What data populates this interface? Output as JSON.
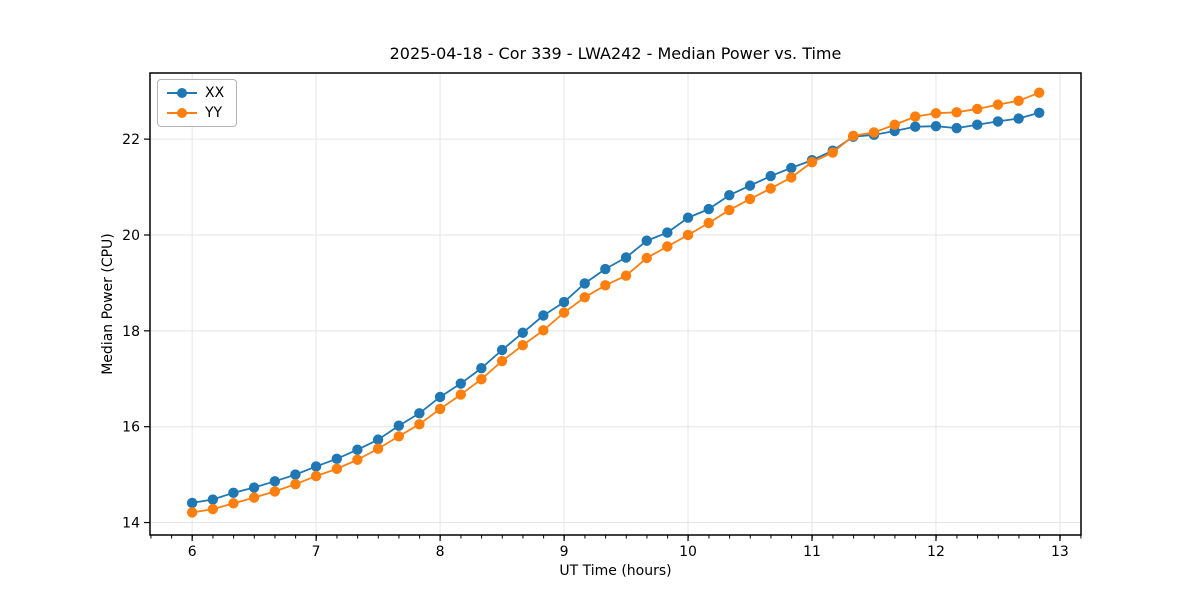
{
  "chart_data": {
    "type": "line",
    "title": "2025-04-18 - Cor 339 - LWA242 - Median Power vs. Time",
    "xlabel": "UT Time (hours)",
    "ylabel": "Median Power (CPU)",
    "xlim": [
      5.66,
      13.17
    ],
    "ylim": [
      13.74,
      23.38
    ],
    "xticks": [
      6,
      7,
      8,
      9,
      10,
      11,
      12,
      13
    ],
    "yticks": [
      14,
      16,
      18,
      20,
      22
    ],
    "x_minor_tick_step": 0.1667,
    "grid": true,
    "grid_color": "#e6e6e6",
    "spine_color": "#000000",
    "text_color": "#000000",
    "legend_position": "upper left",
    "marker": "circle",
    "x": [
      6.0,
      6.167,
      6.333,
      6.5,
      6.667,
      6.833,
      7.0,
      7.167,
      7.333,
      7.5,
      7.667,
      7.833,
      8.0,
      8.167,
      8.333,
      8.5,
      8.667,
      8.833,
      9.0,
      9.167,
      9.333,
      9.5,
      9.667,
      9.833,
      10.0,
      10.167,
      10.333,
      10.5,
      10.667,
      10.833,
      11.0,
      11.167,
      11.333,
      11.5,
      11.667,
      11.833,
      12.0,
      12.167,
      12.333,
      12.5,
      12.667,
      12.833
    ],
    "series": [
      {
        "name": "XX",
        "color": "#1f77b4",
        "values": [
          14.41,
          14.48,
          14.62,
          14.73,
          14.86,
          15.0,
          15.17,
          15.33,
          15.52,
          15.73,
          16.02,
          16.28,
          16.62,
          16.9,
          17.22,
          17.6,
          17.96,
          18.32,
          18.6,
          18.99,
          19.29,
          19.53,
          19.88,
          20.05,
          20.36,
          20.54,
          20.83,
          21.03,
          21.23,
          21.4,
          21.56,
          21.76,
          22.05,
          22.09,
          22.17,
          22.26,
          22.27,
          22.23,
          22.3,
          22.37,
          22.43,
          22.55
        ]
      },
      {
        "name": "YY",
        "color": "#ff7f0e",
        "values": [
          14.21,
          14.28,
          14.4,
          14.52,
          14.65,
          14.8,
          14.97,
          15.12,
          15.31,
          15.54,
          15.8,
          16.05,
          16.37,
          16.67,
          16.99,
          17.37,
          17.7,
          18.01,
          18.38,
          18.7,
          18.95,
          19.15,
          19.52,
          19.76,
          20.0,
          20.25,
          20.52,
          20.75,
          20.97,
          21.2,
          21.52,
          21.72,
          22.07,
          22.14,
          22.3,
          22.47,
          22.54,
          22.56,
          22.63,
          22.72,
          22.8,
          22.97
        ]
      }
    ]
  }
}
